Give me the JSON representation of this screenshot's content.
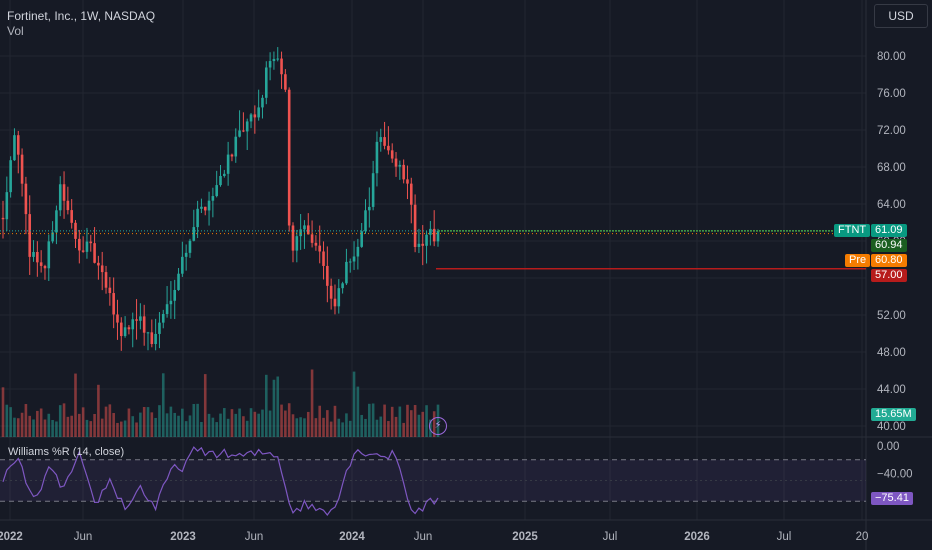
{
  "header": {
    "title": "Fortinet, Inc., 1W, NASDAQ",
    "volume_label": "Vol"
  },
  "indicator": {
    "title": "Williams %R (14, close)"
  },
  "currency_button": {
    "label": "USD"
  },
  "colors": {
    "up": "#26a69a",
    "down": "#ef5350",
    "wr_line": "#7e57c2",
    "pre": "#f57c00",
    "level": "#b71c1c",
    "last_tag": "#089981",
    "vol_tag": "#22ab94"
  },
  "price_tags": {
    "ticker": "FTNT",
    "last": "61.09",
    "prev_close": "60.94",
    "pre_label": "Pre",
    "pre": "60.80",
    "level": "57.00",
    "volume": "15.65M",
    "wr_value": "−75.41"
  },
  "chart_data": {
    "type": "candlestick",
    "price_axis_ticks": [
      "80.00",
      "76.00",
      "72.00",
      "68.00",
      "64.00",
      "60.00",
      "56.00",
      "52.00",
      "48.00",
      "44.00",
      "40.00"
    ],
    "ylim": [
      38.8,
      83.7
    ],
    "wr_axis_ticks": [
      "0.00",
      "−40.00",
      "−80.00"
    ],
    "wr_levels": [
      -20,
      -80
    ],
    "wr_lim": [
      -100,
      0
    ],
    "x_ticks": [
      "2022",
      "Jun",
      "2023",
      "Jun",
      "2024",
      "Jun",
      "2025",
      "Jul",
      "2026",
      "Jul",
      "20"
    ],
    "last_price": 61.09,
    "pre_market": 60.8,
    "level_line": 57.0,
    "anchors": [
      [
        0,
        63
      ],
      [
        3,
        72
      ],
      [
        7,
        59
      ],
      [
        11,
        57
      ],
      [
        15,
        66
      ],
      [
        19,
        60
      ],
      [
        23,
        59
      ],
      [
        27,
        55
      ],
      [
        31,
        50
      ],
      [
        35,
        52
      ],
      [
        39,
        49
      ],
      [
        43,
        53
      ],
      [
        47,
        58
      ],
      [
        51,
        63
      ],
      [
        55,
        65
      ],
      [
        59,
        69
      ],
      [
        63,
        72
      ],
      [
        67,
        74
      ],
      [
        70,
        80
      ],
      [
        72,
        79
      ],
      [
        74,
        76
      ],
      [
        75,
        62
      ],
      [
        76,
        59
      ],
      [
        78,
        62
      ],
      [
        80,
        61
      ],
      [
        83,
        59
      ],
      [
        86,
        53
      ],
      [
        87,
        53
      ],
      [
        90,
        57
      ],
      [
        93,
        60
      ],
      [
        96,
        64
      ],
      [
        98,
        70
      ],
      [
        100,
        71
      ],
      [
        103,
        68
      ],
      [
        105,
        67
      ],
      [
        107,
        64
      ],
      [
        108,
        60
      ],
      [
        110,
        59
      ],
      [
        112,
        61
      ],
      [
        113,
        60.3
      ],
      [
        114,
        61.09
      ]
    ],
    "wr_anchors": [
      [
        0,
        -45
      ],
      [
        4,
        -20
      ],
      [
        8,
        -80
      ],
      [
        12,
        -35
      ],
      [
        16,
        -60
      ],
      [
        20,
        -15
      ],
      [
        24,
        -85
      ],
      [
        28,
        -50
      ],
      [
        32,
        -90
      ],
      [
        36,
        -60
      ],
      [
        40,
        -90
      ],
      [
        44,
        -35
      ],
      [
        47,
        -30
      ],
      [
        50,
        -8
      ],
      [
        56,
        -10
      ],
      [
        62,
        -15
      ],
      [
        68,
        -10
      ],
      [
        72,
        -12
      ],
      [
        74,
        -60
      ],
      [
        76,
        -95
      ],
      [
        79,
        -85
      ],
      [
        82,
        -90
      ],
      [
        85,
        -95
      ],
      [
        88,
        -75
      ],
      [
        90,
        -35
      ],
      [
        92,
        -10
      ],
      [
        96,
        -8
      ],
      [
        100,
        -15
      ],
      [
        103,
        -12
      ],
      [
        105,
        -55
      ],
      [
        107,
        -90
      ],
      [
        109,
        -95
      ],
      [
        111,
        -85
      ],
      [
        113,
        -80
      ],
      [
        114,
        -75.41
      ]
    ]
  }
}
